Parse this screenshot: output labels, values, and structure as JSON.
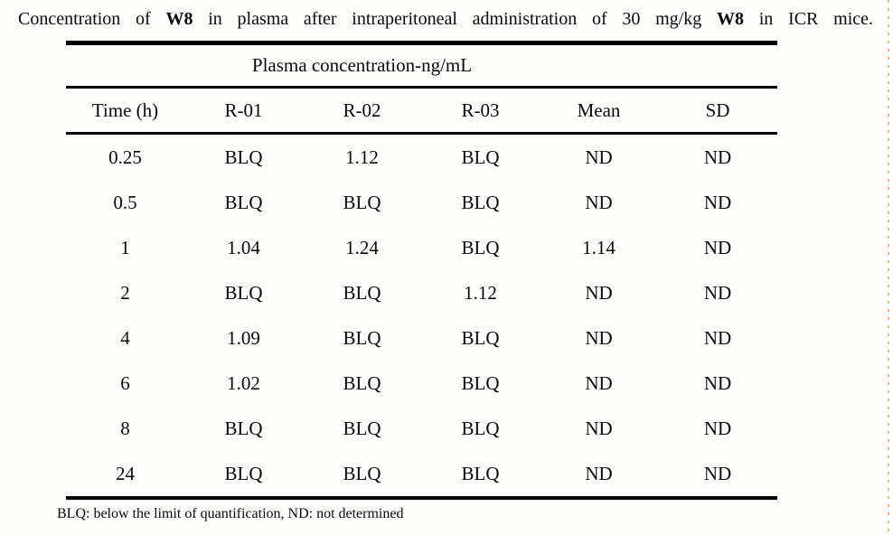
{
  "caption": {
    "segments": [
      {
        "text": "Concentration of ",
        "bold": false
      },
      {
        "text": "W8",
        "bold": true
      },
      {
        "text": " in plasma after intraperitoneal administration of 30 mg/kg ",
        "bold": false
      },
      {
        "text": "W8",
        "bold": true
      },
      {
        "text": " in ICR mice.",
        "bold": false
      }
    ]
  },
  "table": {
    "group_header": "Plasma concentration-ng/mL",
    "columns": [
      "Time (h)",
      "R-01",
      "R-02",
      "R-03",
      "Mean",
      "SD"
    ],
    "rows": [
      [
        "0.25",
        "BLQ",
        "1.12",
        "BLQ",
        "ND",
        "ND"
      ],
      [
        "0.5",
        "BLQ",
        "BLQ",
        "BLQ",
        "ND",
        "ND"
      ],
      [
        "1",
        "1.04",
        "1.24",
        "BLQ",
        "1.14",
        "ND"
      ],
      [
        "2",
        "BLQ",
        "BLQ",
        "1.12",
        "ND",
        "ND"
      ],
      [
        "4",
        "1.09",
        "BLQ",
        "BLQ",
        "ND",
        "ND"
      ],
      [
        "6",
        "1.02",
        "BLQ",
        "BLQ",
        "ND",
        "ND"
      ],
      [
        "8",
        "BLQ",
        "BLQ",
        "BLQ",
        "ND",
        "ND"
      ],
      [
        "24",
        "BLQ",
        "BLQ",
        "BLQ",
        "ND",
        "ND"
      ]
    ]
  },
  "footnote": "BLQ: below the limit of quantification, ND: not determined",
  "colors": {
    "text": "#0a0a0a",
    "rules": "#000000",
    "page_edge_dots": "#dcab79",
    "background": "#fdfdfb"
  }
}
